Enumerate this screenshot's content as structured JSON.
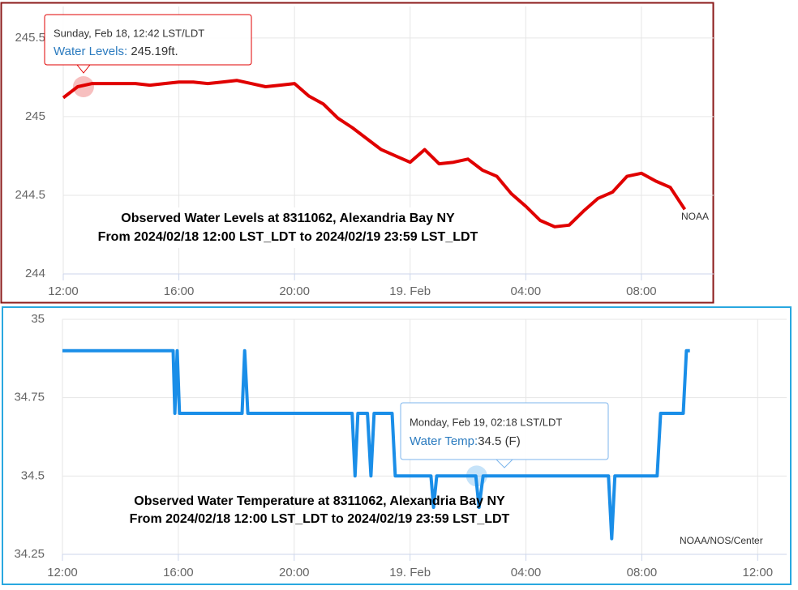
{
  "chart_data": [
    {
      "type": "line",
      "annotation": [
        "Observed Water Levels at 8311062, Alexandria Bay NY",
        "From 2024/02/18 12:00 LST_LDT to 2024/02/19 23:59 LST_LDT"
      ],
      "credit": "NOAA",
      "tooltip": {
        "date": "Sunday, Feb 18, 12:42 LST/LDT",
        "label": "Water Levels: ",
        "value": "245.19ft."
      },
      "color": "#e00000",
      "x": [
        0,
        0.5,
        1,
        1.5,
        2,
        2.5,
        3,
        3.5,
        4,
        4.5,
        5,
        5.5,
        6,
        6.5,
        7,
        7.5,
        8,
        8.5,
        9,
        9.5,
        10,
        10.5,
        11,
        11.5,
        12,
        12.5,
        13,
        13.5,
        14,
        14.5,
        15,
        15.5,
        16,
        16.5,
        17,
        17.5,
        18,
        18.5,
        19,
        19.5,
        20,
        20.5,
        21,
        21.5
      ],
      "values": [
        245.12,
        245.19,
        245.21,
        245.21,
        245.21,
        245.21,
        245.2,
        245.21,
        245.22,
        245.22,
        245.21,
        245.22,
        245.23,
        245.21,
        245.19,
        245.2,
        245.21,
        245.13,
        245.08,
        244.99,
        244.93,
        244.86,
        244.79,
        244.75,
        244.71,
        244.79,
        244.7,
        244.71,
        244.73,
        244.66,
        244.62,
        244.51,
        244.43,
        244.34,
        244.3,
        244.31,
        244.4,
        244.48,
        244.52,
        244.62,
        244.64,
        244.59,
        244.55,
        244.41
      ],
      "xlim": [
        0,
        22.5
      ],
      "xticks": [
        {
          "value": 0,
          "label": "12:00"
        },
        {
          "value": 4,
          "label": "16:00"
        },
        {
          "value": 8,
          "label": "20:00"
        },
        {
          "value": 12,
          "label": "19. Feb"
        },
        {
          "value": 16,
          "label": "04:00"
        },
        {
          "value": 20,
          "label": "08:00"
        }
      ],
      "ylim": [
        244,
        245.7
      ],
      "yticks": [
        244,
        {
          "value": 244.5,
          "label": "244.5"
        },
        245,
        {
          "value": 245.5,
          "label": "245.5"
        }
      ],
      "grid": true
    },
    {
      "type": "line",
      "annotation": [
        "Observed Water Temperature at 8311062, Alexandria Bay NY",
        "From 2024/02/18 12:00 LST_LDT to 2024/02/19 23:59 LST_LDT"
      ],
      "credit": "NOAA/NOS/Center",
      "tooltip": {
        "date": "Monday, Feb 19, 02:18 LST/LDT",
        "label": "Water Temp:",
        "value": "34.5 (F)"
      },
      "color": "#1a8ee8",
      "x": [
        0,
        3.82,
        3.88,
        3.96,
        4.04,
        6.2,
        6.29,
        6.4,
        10,
        10.1,
        10.2,
        10.53,
        10.65,
        10.76,
        11.38,
        11.49,
        12.72,
        12.81,
        12.92,
        14.27,
        14.38,
        14.52,
        18.85,
        18.96,
        19.07,
        20.53,
        20.65,
        21.43,
        21.54,
        21.66
      ],
      "values": [
        34.9,
        34.9,
        34.7,
        34.9,
        34.7,
        34.7,
        34.9,
        34.7,
        34.7,
        34.5,
        34.7,
        34.7,
        34.5,
        34.7,
        34.7,
        34.5,
        34.5,
        34.4,
        34.5,
        34.5,
        34.4,
        34.5,
        34.5,
        34.3,
        34.5,
        34.5,
        34.7,
        34.7,
        34.9,
        34.9
      ],
      "xlim": [
        0,
        25
      ],
      "xticks": [
        {
          "value": 0,
          "label": "12:00"
        },
        {
          "value": 4,
          "label": "16:00"
        },
        {
          "value": 8,
          "label": "20:00"
        },
        {
          "value": 12,
          "label": "19. Feb"
        },
        {
          "value": 16,
          "label": "04:00"
        },
        {
          "value": 20,
          "label": "08:00"
        },
        {
          "value": 24,
          "label": "12:00"
        }
      ],
      "ylim": [
        34.25,
        35
      ],
      "yticks": [
        34.25,
        34.5,
        34.75,
        35
      ],
      "grid": true
    }
  ]
}
